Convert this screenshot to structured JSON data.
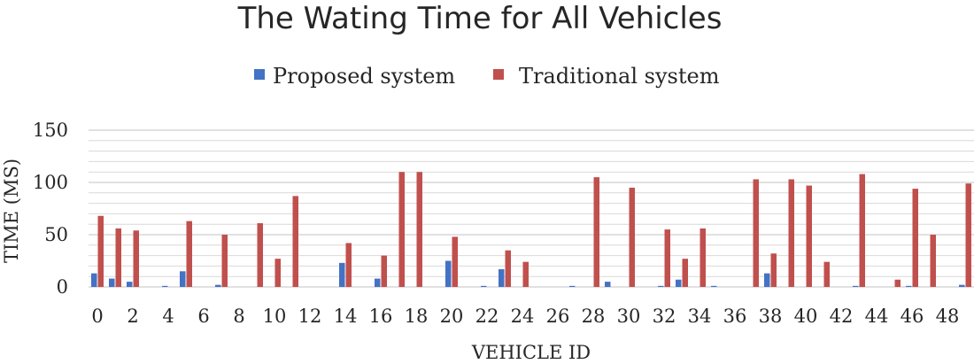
{
  "chart_data": {
    "type": "bar",
    "title": "The Wating Time for All Vehicles",
    "xlabel": "VEHICLE ID",
    "ylabel": "TIME (MS)",
    "ylim": [
      0,
      150
    ],
    "yticks": [
      0,
      50,
      100,
      150
    ],
    "grid": true,
    "legend_position": "top-center",
    "categories": [
      0,
      1,
      2,
      3,
      4,
      5,
      6,
      7,
      8,
      9,
      10,
      11,
      12,
      13,
      14,
      15,
      16,
      17,
      18,
      19,
      20,
      21,
      22,
      23,
      24,
      25,
      26,
      27,
      28,
      29,
      30,
      31,
      32,
      33,
      34,
      35,
      36,
      37,
      38,
      39,
      40,
      41,
      42,
      43,
      44,
      45,
      46,
      47,
      48,
      49
    ],
    "xtick_labels": [
      "0",
      "2",
      "4",
      "6",
      "8",
      "10",
      "12",
      "14",
      "16",
      "18",
      "20",
      "22",
      "24",
      "26",
      "28",
      "30",
      "32",
      "34",
      "36",
      "38",
      "40",
      "42",
      "44",
      "46",
      "48"
    ],
    "series": [
      {
        "name": "Proposed system",
        "color": "#4472c4",
        "values": [
          13,
          8,
          5,
          0,
          1,
          15,
          0,
          2,
          0,
          0,
          0,
          0,
          0,
          0,
          23,
          0,
          8,
          0,
          0,
          0,
          25,
          0,
          1,
          17,
          0,
          0,
          0,
          1,
          0,
          5,
          0,
          0,
          1,
          7,
          0,
          1,
          0,
          0,
          13,
          0,
          0,
          0,
          0,
          1,
          0,
          0,
          1,
          0,
          0,
          2
        ]
      },
      {
        "name": "Traditional system",
        "color": "#c0504d",
        "values": [
          68,
          56,
          54,
          0,
          0,
          63,
          0,
          50,
          0,
          61,
          27,
          87,
          0,
          0,
          42,
          0,
          30,
          110,
          110,
          0,
          48,
          0,
          0,
          35,
          24,
          0,
          0,
          0,
          105,
          0,
          95,
          0,
          55,
          27,
          56,
          0,
          0,
          103,
          32,
          103,
          97,
          24,
          0,
          108,
          0,
          7,
          94,
          50,
          0,
          99
        ]
      }
    ]
  }
}
